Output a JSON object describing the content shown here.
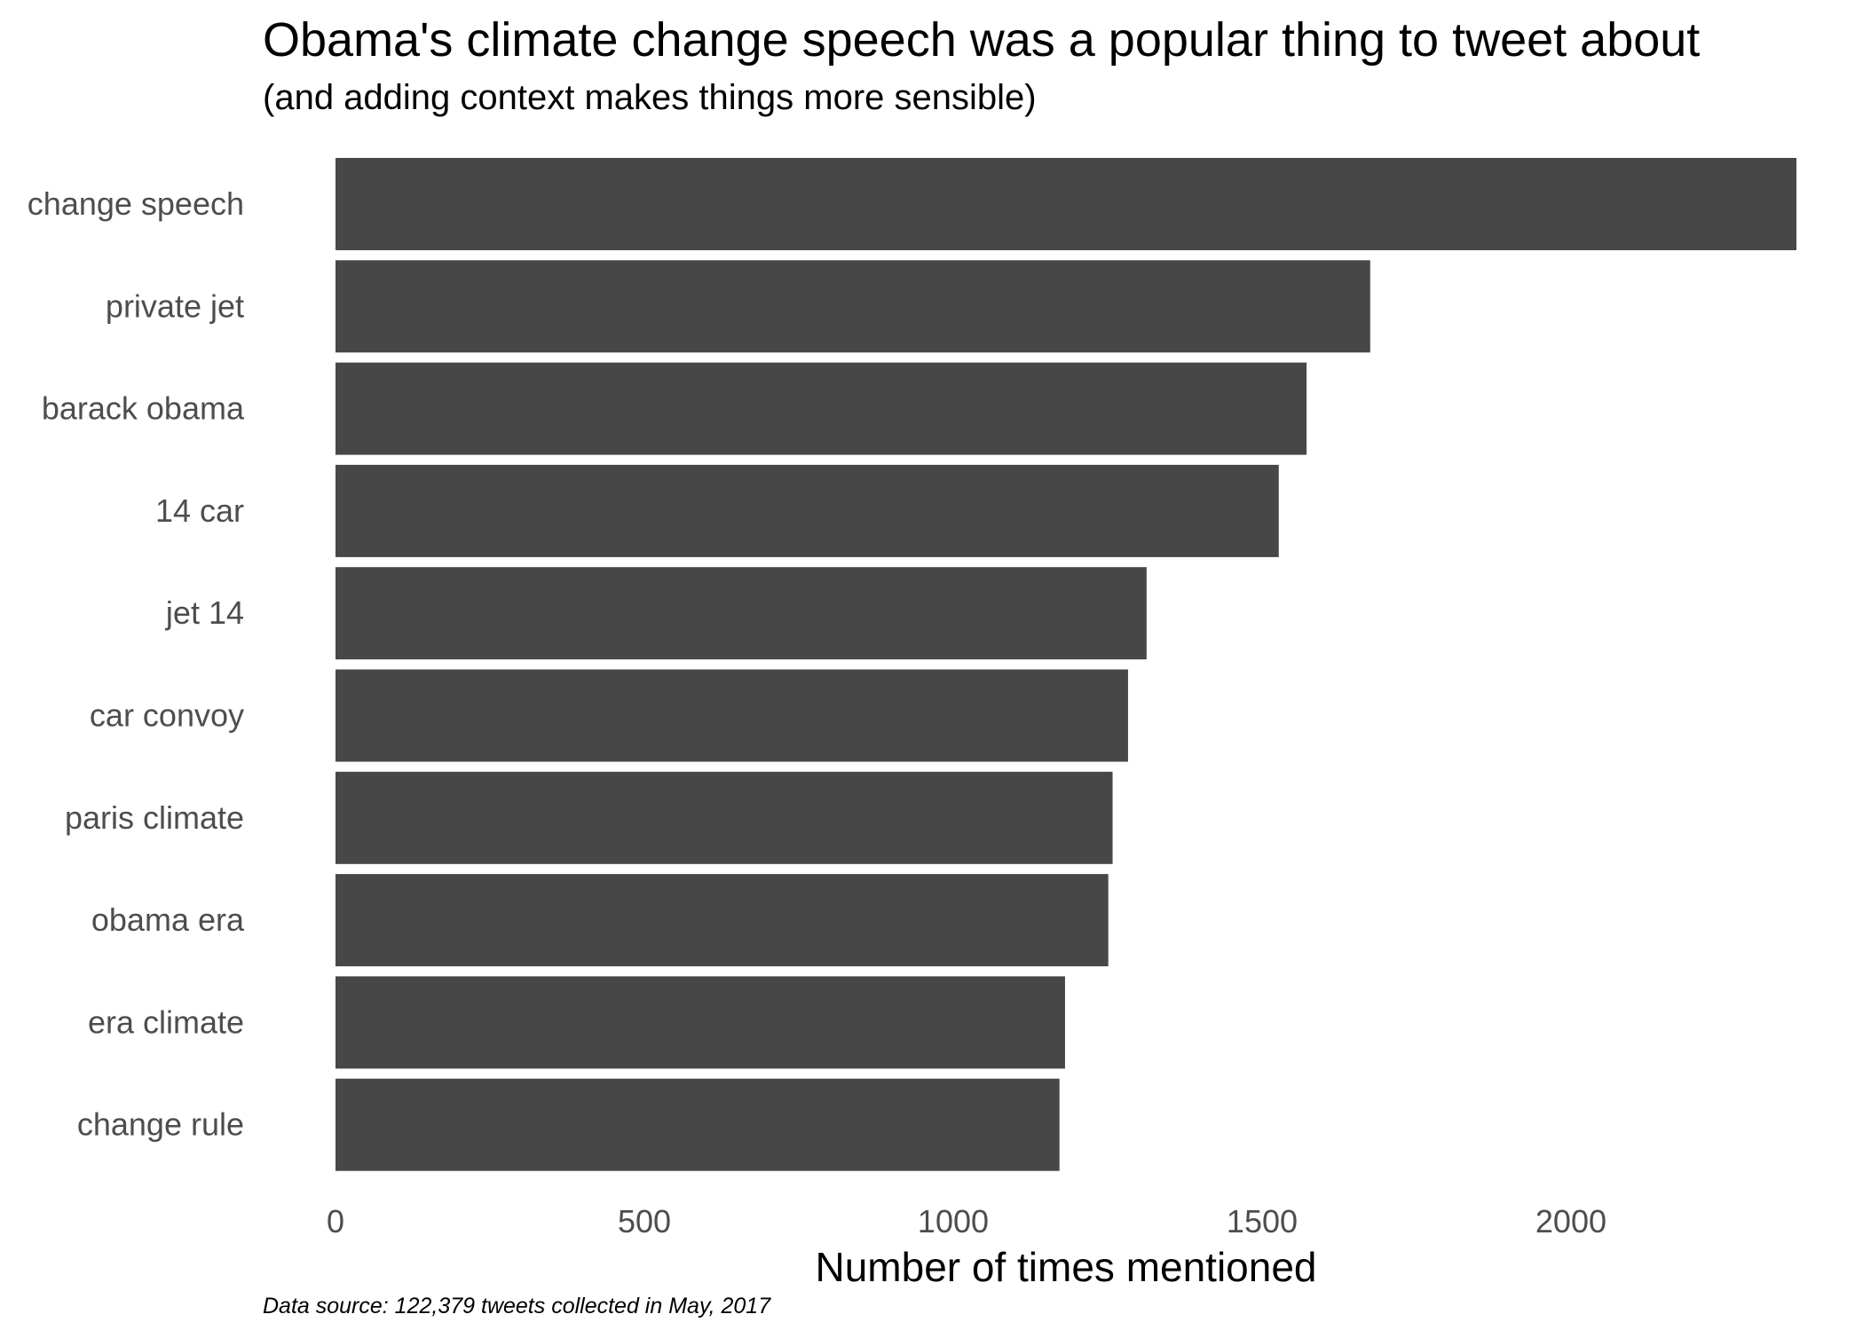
{
  "chart_data": {
    "type": "bar",
    "orientation": "horizontal",
    "title": "Obama's climate change speech was a popular thing to tweet about",
    "subtitle": "(and adding context makes things more sensible)",
    "caption": "Data source: 122,379 tweets collected in May, 2017",
    "xlabel": "Number of times mentioned",
    "ylabel": "",
    "categories": [
      "change speech",
      "private jet",
      "barack obama",
      "14 car",
      "jet 14",
      "car convoy",
      "paris climate",
      "obama era",
      "era climate",
      "change rule"
    ],
    "values": [
      2365,
      1675,
      1572,
      1527,
      1313,
      1283,
      1258,
      1251,
      1181,
      1172
    ],
    "xlim": [
      0,
      2365
    ],
    "xticks": [
      0,
      500,
      1000,
      1500,
      2000
    ],
    "xtick_labels": [
      "0",
      "500",
      "1000",
      "1500",
      "2000"
    ],
    "bar_color": "#474747",
    "grid": false,
    "legend": "none"
  }
}
